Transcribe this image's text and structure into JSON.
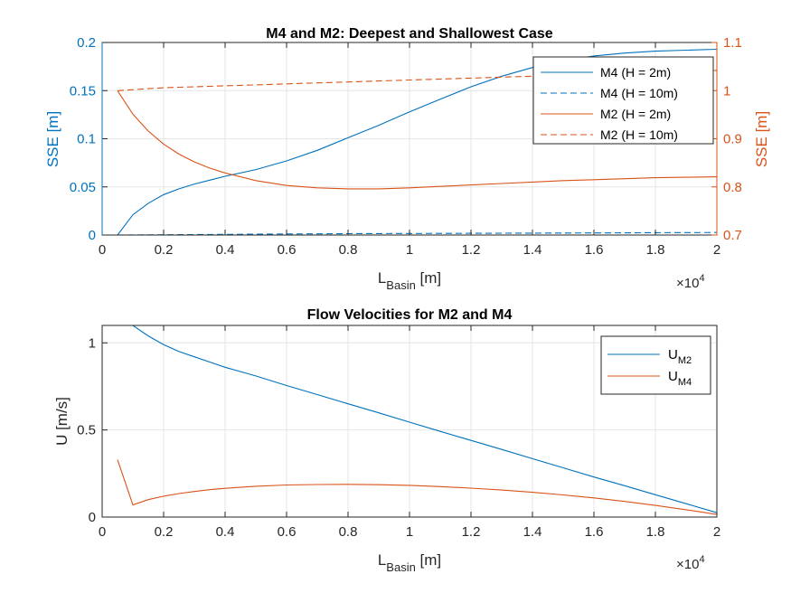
{
  "colors": {
    "blue": "#0072BD",
    "orange": "#D95319",
    "grid": "#e6e6e6",
    "axis": "#262626"
  },
  "chart_data": [
    {
      "type": "line",
      "title": "M4 and M2: Deepest and Shallowest Case",
      "xlabel_main": "L",
      "xlabel_sub": "Basin",
      "xlabel_unit": " [m]",
      "x_exponent_base": "×10",
      "x_exponent_power": "4",
      "ylabel": "SSE [m]",
      "ylabel_right": "SSE [m]",
      "xlim": [
        0,
        20000
      ],
      "ylim": [
        0,
        0.2
      ],
      "ylim_right": [
        0.7,
        1.1
      ],
      "xticks": [
        0,
        2000,
        4000,
        6000,
        8000,
        10000,
        12000,
        14000,
        16000,
        18000,
        20000
      ],
      "xtick_labels": [
        "0",
        "0.2",
        "0.4",
        "0.6",
        "0.8",
        "1",
        "1.2",
        "1.4",
        "1.6",
        "1.8",
        "2"
      ],
      "yticks": [
        0,
        0.05,
        0.1,
        0.15,
        0.2
      ],
      "ytick_labels": [
        "0",
        "0.05",
        "0.1",
        "0.15",
        "0.2"
      ],
      "yticks_right": [
        0.7,
        0.8,
        0.9,
        1.0,
        1.1
      ],
      "ytick_labels_right": [
        "0.7",
        "0.8",
        "0.9",
        "1",
        "1.1"
      ],
      "grid": true,
      "legend_position": "top-right",
      "x": [
        500,
        1000,
        1500,
        2000,
        2500,
        3000,
        3500,
        4000,
        5000,
        6000,
        7000,
        8000,
        9000,
        10000,
        11000,
        12000,
        13000,
        14000,
        15000,
        16000,
        17000,
        18000,
        19000,
        20000
      ],
      "series": [
        {
          "name": "M4 (H = 2m)",
          "axis": "left",
          "color": "blue",
          "dash": "solid",
          "values": [
            0.0,
            0.021,
            0.033,
            0.042,
            0.048,
            0.053,
            0.057,
            0.061,
            0.068,
            0.077,
            0.088,
            0.101,
            0.114,
            0.128,
            0.141,
            0.154,
            0.165,
            0.174,
            0.181,
            0.186,
            0.189,
            0.191,
            0.192,
            0.193
          ]
        },
        {
          "name": "M4 (H = 10m)",
          "axis": "left",
          "color": "blue",
          "dash": "dashed",
          "values": [
            0.0,
            0.0001,
            0.0002,
            0.0003,
            0.0004,
            0.0005,
            0.0006,
            0.0007,
            0.0009,
            0.0011,
            0.0012,
            0.0014,
            0.0015,
            0.0016,
            0.0017,
            0.0018,
            0.0019,
            0.002,
            0.0021,
            0.0022,
            0.0023,
            0.0024,
            0.0025,
            0.0026
          ]
        },
        {
          "name": "M2 (H = 2m)",
          "axis": "right",
          "color": "orange",
          "dash": "solid",
          "values": [
            1.0,
            0.951,
            0.916,
            0.889,
            0.868,
            0.852,
            0.839,
            0.829,
            0.813,
            0.803,
            0.798,
            0.796,
            0.796,
            0.798,
            0.801,
            0.804,
            0.807,
            0.81,
            0.813,
            0.815,
            0.817,
            0.819,
            0.82,
            0.821
          ]
        },
        {
          "name": "M2 (H = 10m)",
          "axis": "right",
          "color": "orange",
          "dash": "dashed",
          "values": [
            1.0,
            1.002,
            1.004,
            1.006,
            1.007,
            1.008,
            1.009,
            1.01,
            1.012,
            1.014,
            1.016,
            1.018,
            1.02,
            1.022,
            1.024,
            1.026,
            1.028,
            1.03,
            1.032,
            1.034,
            1.036,
            1.038,
            1.04,
            1.042
          ]
        }
      ]
    },
    {
      "type": "line",
      "title": "Flow Velocities for M2 and M4",
      "xlabel_main": "L",
      "xlabel_sub": "Basin",
      "xlabel_unit": " [m]",
      "x_exponent_base": "×10",
      "x_exponent_power": "4",
      "ylabel": "U [m/s]",
      "xlim": [
        0,
        20000
      ],
      "ylim": [
        0,
        1.1
      ],
      "xticks": [
        0,
        2000,
        4000,
        6000,
        8000,
        10000,
        12000,
        14000,
        16000,
        18000,
        20000
      ],
      "xtick_labels": [
        "0",
        "0.2",
        "0.4",
        "0.6",
        "0.8",
        "1",
        "1.2",
        "1.4",
        "1.6",
        "1.8",
        "2"
      ],
      "yticks": [
        0,
        0.5,
        1
      ],
      "ytick_labels": [
        "0",
        "0.5",
        "1"
      ],
      "grid": true,
      "legend_position": "top-right",
      "x": [
        500,
        1000,
        1500,
        2000,
        2500,
        3000,
        3500,
        4000,
        5000,
        6000,
        7000,
        8000,
        9000,
        10000,
        11000,
        12000,
        13000,
        14000,
        15000,
        16000,
        17000,
        18000,
        19000,
        20000
      ],
      "series": [
        {
          "name_main": "U",
          "name_sub": "M2",
          "color": "blue",
          "dash": "solid",
          "values": [
            1.1,
            1.1,
            1.04,
            0.99,
            0.95,
            0.92,
            0.89,
            0.86,
            0.81,
            0.755,
            0.703,
            0.65,
            0.598,
            0.545,
            0.492,
            0.44,
            0.388,
            0.335,
            0.283,
            0.23,
            0.18,
            0.128,
            0.077,
            0.025
          ]
        },
        {
          "name_main": "U",
          "name_sub": "M4",
          "color": "orange",
          "dash": "solid",
          "values": [
            0.33,
            0.07,
            0.1,
            0.12,
            0.135,
            0.147,
            0.157,
            0.165,
            0.177,
            0.184,
            0.187,
            0.188,
            0.186,
            0.182,
            0.175,
            0.166,
            0.155,
            0.142,
            0.127,
            0.11,
            0.09,
            0.067,
            0.042,
            0.015
          ]
        }
      ]
    }
  ]
}
